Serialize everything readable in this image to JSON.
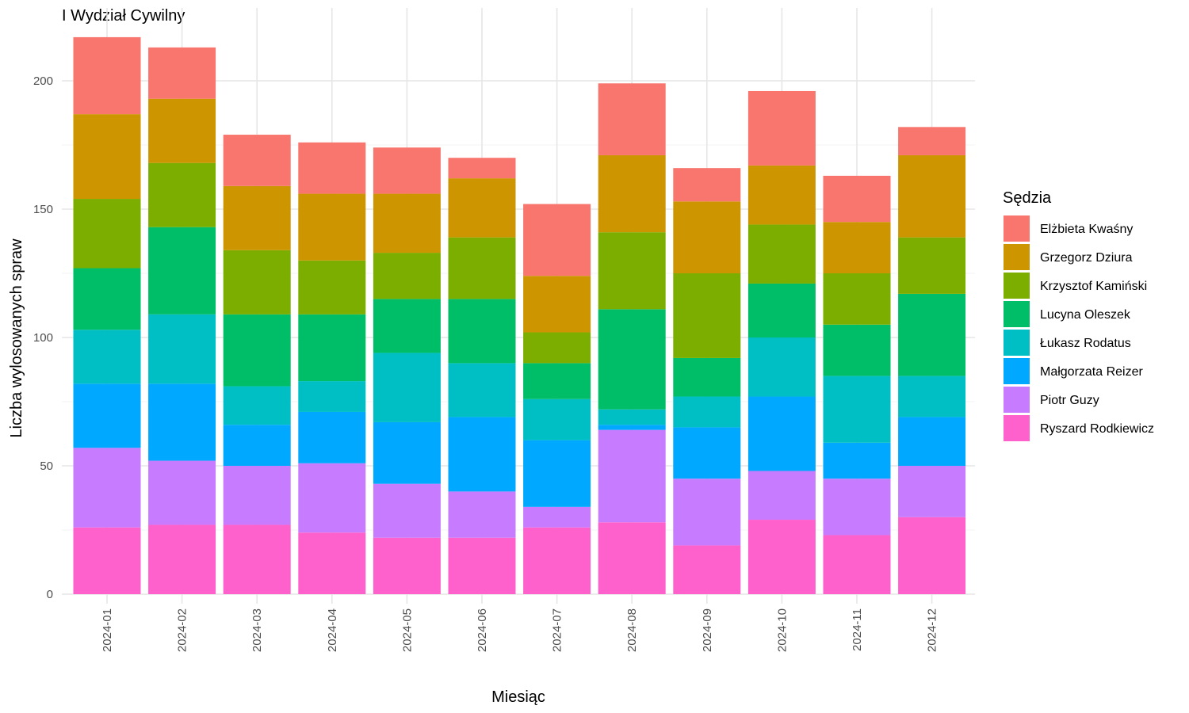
{
  "chart_data": {
    "type": "bar",
    "stacked": true,
    "title": "I Wydział Cywilny",
    "xlabel": "Miesiąc",
    "ylabel": "Liczba wylosowanych spraw",
    "ylim": [
      0,
      218
    ],
    "yticks": [
      0,
      50,
      100,
      150,
      200
    ],
    "grid": true,
    "legend_title": "Sędzia",
    "legend_position": "right",
    "categories": [
      "2024-01",
      "2024-02",
      "2024-03",
      "2024-04",
      "2024-05",
      "2024-06",
      "2024-07",
      "2024-08",
      "2024-09",
      "2024-10",
      "2024-11",
      "2024-12"
    ],
    "series": [
      {
        "name": "Elżbieta Kwaśny",
        "color": "#F8766D",
        "values": [
          30,
          20,
          20,
          20,
          18,
          8,
          28,
          28,
          13,
          29,
          18,
          11
        ]
      },
      {
        "name": "Grzegorz Dziura",
        "color": "#CD9600",
        "values": [
          33,
          25,
          25,
          26,
          23,
          23,
          22,
          30,
          28,
          23,
          20,
          32
        ]
      },
      {
        "name": "Krzysztof Kamiński",
        "color": "#7CAE00",
        "values": [
          27,
          25,
          25,
          21,
          18,
          24,
          12,
          30,
          33,
          23,
          20,
          22
        ]
      },
      {
        "name": "Lucyna Oleszek",
        "color": "#00BE67",
        "values": [
          24,
          34,
          28,
          26,
          21,
          25,
          14,
          39,
          15,
          21,
          20,
          32
        ]
      },
      {
        "name": "Łukasz Rodatus",
        "color": "#00BFC4",
        "values": [
          21,
          27,
          15,
          12,
          27,
          21,
          16,
          6,
          12,
          23,
          26,
          16
        ]
      },
      {
        "name": "Małgorzata Reizer",
        "color": "#00A9FF",
        "values": [
          25,
          30,
          16,
          20,
          24,
          29,
          26,
          2,
          20,
          29,
          14,
          19
        ]
      },
      {
        "name": "Piotr Guzy",
        "color": "#C77CFF",
        "values": [
          31,
          25,
          23,
          27,
          21,
          18,
          8,
          36,
          26,
          19,
          22,
          20
        ]
      },
      {
        "name": "Ryszard Rodkiewicz",
        "color": "#FF61CC",
        "values": [
          26,
          27,
          27,
          24,
          22,
          22,
          26,
          28,
          19,
          29,
          23,
          30
        ]
      }
    ]
  }
}
